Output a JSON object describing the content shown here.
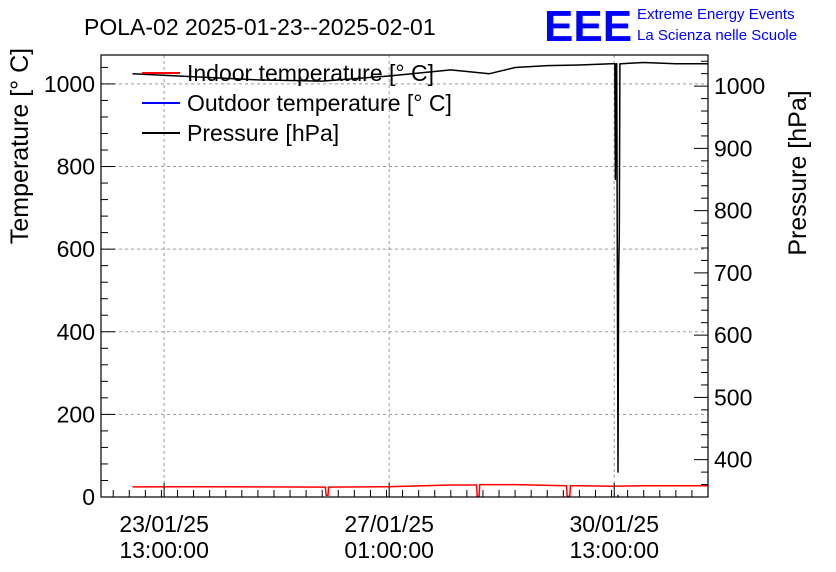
{
  "chart_data": {
    "type": "line",
    "title": "POLA-02 2025-01-23--2025-02-01",
    "logo": {
      "text": "EEE",
      "line1": "Extreme Energy Events",
      "line2": "La Scienza nelle Scuole",
      "color": "#0000ff"
    },
    "ylabel": "Temperature [° C]",
    "y2label": "Pressure [hPa]",
    "ylim": [
      0,
      1070
    ],
    "y2lim": [
      340,
      1050
    ],
    "yticks": [
      0,
      200,
      400,
      600,
      800,
      1000
    ],
    "y2ticks": [
      400,
      500,
      600,
      700,
      800,
      900,
      1000
    ],
    "x_unit": "days after 2025-01-23 00:00",
    "xlim": [
      -0.44,
      9.0
    ],
    "xticks": [
      {
        "x": 0.5417,
        "line1": "23/01/25",
        "line2": "13:00:00"
      },
      {
        "x": 4.0417,
        "line1": "27/01/25",
        "line2": "01:00:00"
      },
      {
        "x": 7.5417,
        "line1": "30/01/25",
        "line2": "13:00:00"
      }
    ],
    "grid": true,
    "legend": {
      "placement": "top-left"
    },
    "series": [
      {
        "name": "Indoor temperature [° C]",
        "color": "#ff0000",
        "axis": "left",
        "x": [
          0.05,
          1.0,
          2.0,
          3.0,
          3.05,
          3.06,
          3.09,
          3.1,
          4.0,
          5.0,
          5.4,
          5.41,
          5.44,
          5.45,
          6.0,
          6.8,
          6.81,
          6.85,
          6.86,
          7.0,
          7.5,
          8.0,
          9.0
        ],
        "values": [
          24.5,
          25,
          24.5,
          24,
          24,
          4,
          4,
          24,
          25,
          29,
          29,
          2,
          2,
          30,
          30,
          27,
          2,
          2,
          27,
          27,
          26,
          27,
          27
        ]
      },
      {
        "name": "Outdoor temperature [° C]",
        "color": "#0000ff",
        "axis": "left",
        "x": [
          7.6,
          7.6
        ],
        "values": [
          0,
          5
        ]
      },
      {
        "name": "Pressure [hPa]",
        "color": "#000000",
        "axis": "right",
        "x": [
          0.05,
          1.0,
          2.0,
          3.0,
          4.0,
          5.0,
          5.6,
          6.0,
          6.5,
          7.0,
          7.5,
          7.55,
          7.56,
          7.57,
          7.58,
          7.6,
          7.61,
          7.62,
          7.63,
          7.65,
          8.0,
          8.5,
          9.0
        ],
        "values": [
          1020,
          1015,
          1010,
          1008,
          1016,
          1026,
          1020,
          1030,
          1033,
          1034,
          1036,
          1036,
          850,
          1036,
          1036,
          380,
          695,
          760,
          1036,
          1036,
          1038,
          1036,
          1036
        ]
      }
    ]
  }
}
